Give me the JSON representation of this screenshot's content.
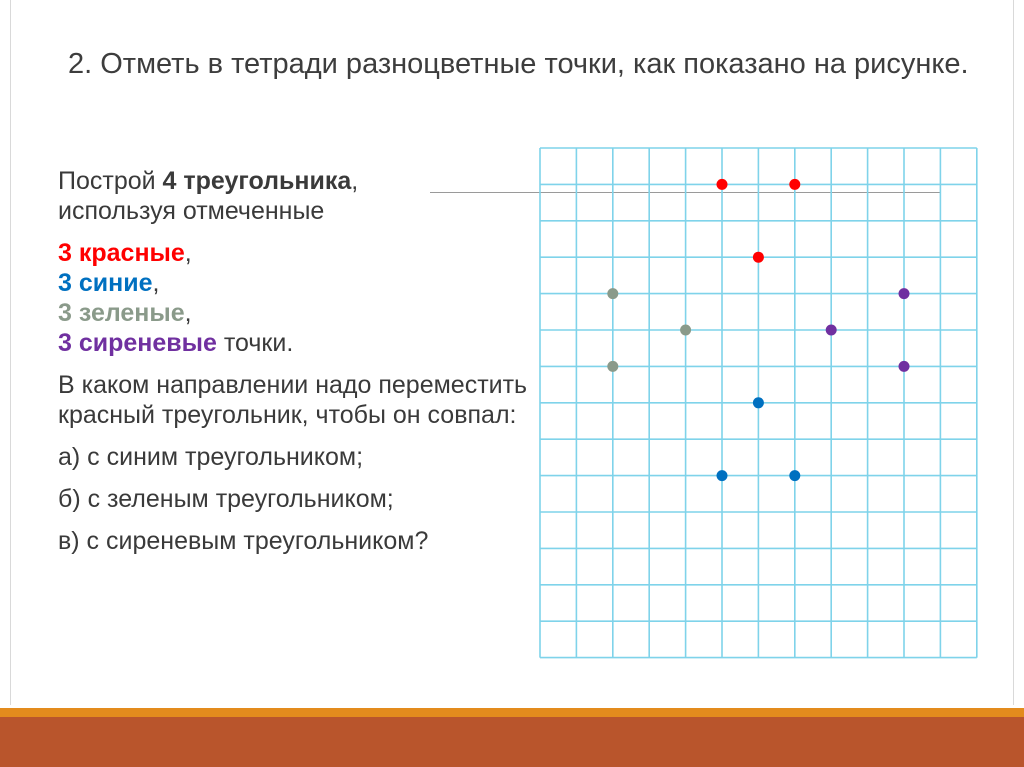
{
  "task": {
    "title": "2. Отметь в тетради разноцветные точки, как показано на рисунке."
  },
  "instructions": {
    "line1_prefix": "Построй ",
    "line1_bold": "4 треугольника",
    "line1_suffix": ",",
    "line2": "используя отмеченные",
    "red_label": "3 красные",
    "red_comma": ",",
    "blue_label": "3 синие",
    "blue_comma": ",",
    "green_label": "3 зеленые",
    "green_comma": ",",
    "violet_label": "3 сиреневые",
    "violet_suffix": " точки.",
    "question": "В каком направлении надо переместить красный треугольник, чтобы он совпал:",
    "option_a": "а) с синим треугольником;",
    "option_b": "б) с зеленым треугольником;",
    "option_c": "в) с сиреневым треугольником?"
  },
  "colors": {
    "red": "#ff0000",
    "blue": "#0070c0",
    "green": "#8a9a8a",
    "violet": "#7030a0",
    "grid": "#7fd3ea"
  },
  "grid": {
    "columns": 12,
    "rows": 14,
    "points": [
      {
        "color": "red",
        "col": 5,
        "row": 1
      },
      {
        "color": "red",
        "col": 7,
        "row": 1
      },
      {
        "color": "red",
        "col": 6,
        "row": 3
      },
      {
        "color": "green",
        "col": 2,
        "row": 4
      },
      {
        "color": "green",
        "col": 4,
        "row": 5
      },
      {
        "color": "green",
        "col": 2,
        "row": 6
      },
      {
        "color": "violet",
        "col": 10,
        "row": 4
      },
      {
        "color": "violet",
        "col": 8,
        "row": 5
      },
      {
        "color": "violet",
        "col": 10,
        "row": 6
      },
      {
        "color": "blue",
        "col": 6,
        "row": 7
      },
      {
        "color": "blue",
        "col": 5,
        "row": 9
      },
      {
        "color": "blue",
        "col": 7,
        "row": 9
      }
    ]
  }
}
